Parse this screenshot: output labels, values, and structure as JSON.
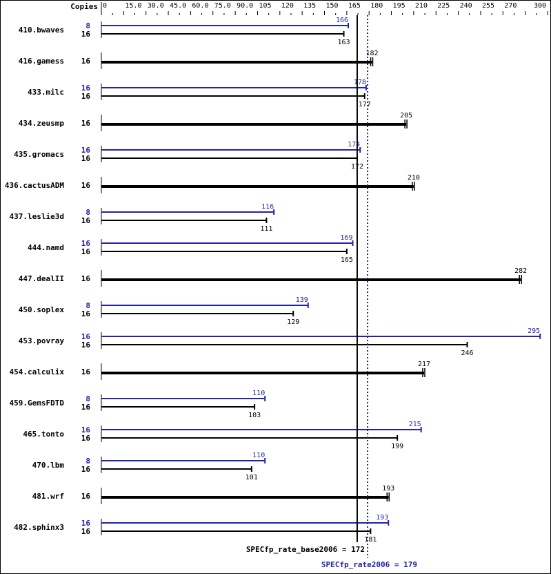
{
  "chart_data": {
    "type": "bar",
    "orientation": "horizontal",
    "axis_header": "Copies",
    "xlim": [
      0,
      300
    ],
    "tick_labels": [
      "0",
      "15.0",
      "30.0",
      "45.0",
      "60.0",
      "75.0",
      "90.0",
      "105",
      "120",
      "135",
      "150",
      "165",
      "180",
      "195",
      "210",
      "225",
      "240",
      "255",
      "270",
      "300"
    ],
    "tick_values": [
      0,
      15,
      30,
      45,
      60,
      75,
      90,
      105,
      120,
      135,
      150,
      165,
      180,
      195,
      210,
      225,
      240,
      255,
      270,
      300
    ],
    "minor_tick_step": 7.5,
    "colors": {
      "base": "#000000",
      "peak": "#2222aa"
    },
    "benchmarks": [
      {
        "name": "410.bwaves",
        "peak_copies": "8",
        "peak": 166,
        "base_copies": "16",
        "base": 163
      },
      {
        "name": "416.gamess",
        "base_copies": "16",
        "base": 182
      },
      {
        "name": "433.milc",
        "peak_copies": "16",
        "peak": 178,
        "base_copies": "16",
        "base": 177
      },
      {
        "name": "434.zeusmp",
        "base_copies": "16",
        "base": 205
      },
      {
        "name": "435.gromacs",
        "peak_copies": "16",
        "peak": 174,
        "base_copies": "16",
        "base": 172
      },
      {
        "name": "436.cactusADM",
        "base_copies": "16",
        "base": 210
      },
      {
        "name": "437.leslie3d",
        "peak_copies": "8",
        "peak": 116,
        "base_copies": "16",
        "base": 111
      },
      {
        "name": "444.namd",
        "peak_copies": "16",
        "peak": 169,
        "base_copies": "16",
        "base": 165
      },
      {
        "name": "447.dealII",
        "base_copies": "16",
        "base": 282
      },
      {
        "name": "450.soplex",
        "peak_copies": "8",
        "peak": 139,
        "base_copies": "16",
        "base": 129
      },
      {
        "name": "453.povray",
        "peak_copies": "16",
        "peak": 295,
        "base_copies": "16",
        "base": 246
      },
      {
        "name": "454.calculix",
        "base_copies": "16",
        "base": 217
      },
      {
        "name": "459.GemsFDTD",
        "peak_copies": "8",
        "peak": 110,
        "base_copies": "16",
        "base": 103
      },
      {
        "name": "465.tonto",
        "peak_copies": "16",
        "peak": 215,
        "base_copies": "16",
        "base": 199
      },
      {
        "name": "470.lbm",
        "peak_copies": "8",
        "peak": 110,
        "base_copies": "16",
        "base": 101
      },
      {
        "name": "481.wrf",
        "base_copies": "16",
        "base": 193
      },
      {
        "name": "482.sphinx3",
        "peak_copies": "16",
        "peak": 193,
        "base_copies": "16",
        "base": 181
      }
    ],
    "base_metric": {
      "label": "SPECfp_rate_base2006 = 172",
      "value": 172
    },
    "peak_metric": {
      "label": "SPECfp_rate2006 = 179",
      "value": 179
    }
  }
}
